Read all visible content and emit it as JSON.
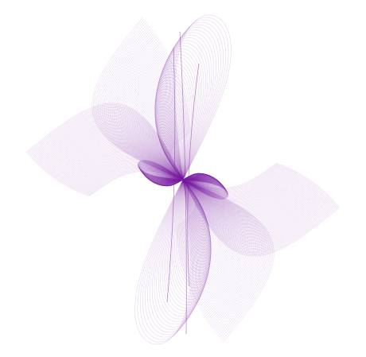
{
  "artwork": {
    "background_color": "#ffffff",
    "stroke_color": "#7b1fa2",
    "description_visible_text": ""
  }
}
